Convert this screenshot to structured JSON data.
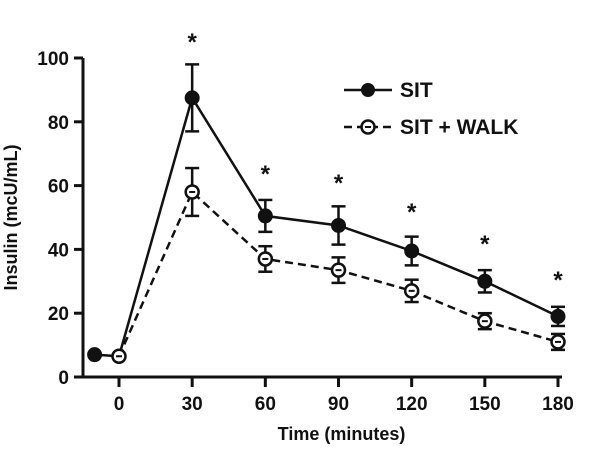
{
  "chart_data": {
    "type": "line",
    "xlabel": "Time (minutes)",
    "ylabel": "Insulin (mcU/mL)",
    "xlim": [
      -15,
      180
    ],
    "ylim": [
      0,
      100
    ],
    "x_ticks": [
      0,
      30,
      60,
      90,
      120,
      150,
      180
    ],
    "y_ticks": [
      0,
      20,
      40,
      60,
      80,
      100
    ],
    "legend_position": "top-right",
    "series": [
      {
        "name": "SIT",
        "style": "solid",
        "marker": "filled-circle",
        "color": "#111111",
        "x": [
          -10,
          0,
          30,
          60,
          90,
          120,
          150,
          180
        ],
        "y": [
          7,
          6.5,
          87.5,
          50.5,
          47.5,
          39.5,
          30,
          19
        ],
        "err": [
          0,
          0,
          10.5,
          5,
          6,
          4.5,
          3.5,
          3
        ]
      },
      {
        "name": "SIT + WALK",
        "style": "dashed",
        "marker": "open-circle",
        "color": "#111111",
        "x": [
          0,
          30,
          60,
          90,
          120,
          150,
          180
        ],
        "y": [
          6.5,
          58,
          37,
          33.5,
          27,
          17.5,
          11
        ],
        "err": [
          0,
          7.5,
          4,
          4,
          3.5,
          2.5,
          2.5
        ]
      }
    ],
    "annotations": [
      {
        "x": 30,
        "label": "*",
        "y_above": 110
      },
      {
        "x": 60,
        "label": "*",
        "y_above": 66
      },
      {
        "x": 90,
        "label": "*",
        "y_above": 62
      },
      {
        "x": 120,
        "label": "*",
        "y_above": 54
      },
      {
        "x": 150,
        "label": "*",
        "y_above": 43
      },
      {
        "x": 180,
        "label": "*",
        "y_above": 31
      }
    ]
  }
}
